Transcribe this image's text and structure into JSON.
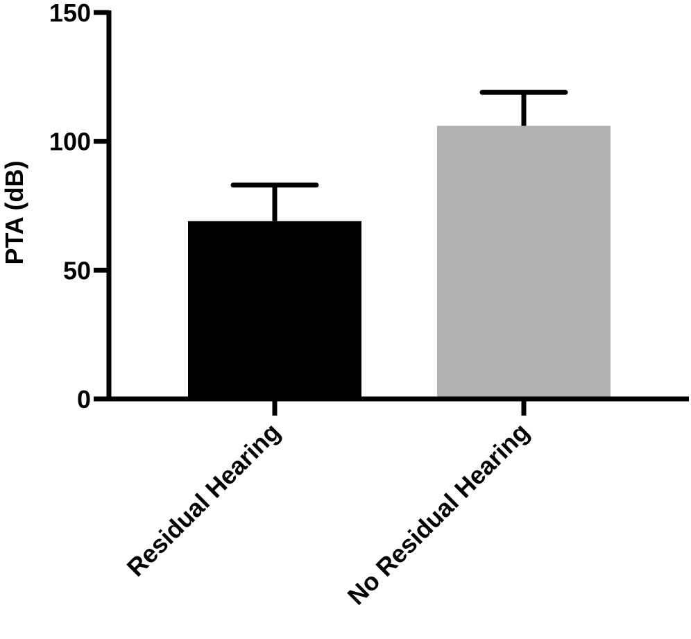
{
  "chart_data": {
    "type": "bar",
    "categories": [
      "Residual Hearing",
      "No Residual Hearing"
    ],
    "values": [
      69,
      106
    ],
    "error_upper": [
      83,
      119
    ],
    "colors": [
      "#000000",
      "#b0b0b0"
    ],
    "ylabel": "PTA (dB)",
    "xlabel": "",
    "ylim": [
      0,
      150
    ],
    "yticks": [
      0,
      50,
      100,
      150
    ],
    "ytick_labels": [
      "0",
      "50",
      "100",
      "150"
    ],
    "grid": false,
    "legend": "none"
  }
}
